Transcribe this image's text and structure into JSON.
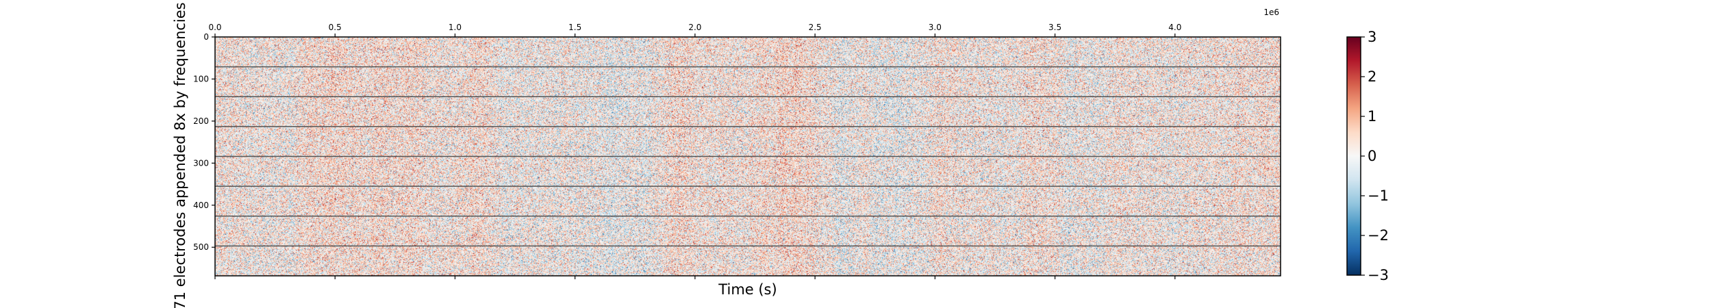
{
  "chart_data": {
    "type": "heatmap",
    "title": "",
    "xlabel": "Time (s)",
    "ylabel": "71 electrodes appended 8x by frequencies",
    "x_offset_label": "1e6",
    "xlim": [
      0,
      4.44
    ],
    "ylim": [
      568,
      0
    ],
    "x_ticks": [
      0.0,
      0.5,
      1.0,
      1.5,
      2.0,
      2.5,
      3.0,
      3.5,
      4.0
    ],
    "x_tick_labels": [
      "0.0",
      "0.5",
      "1.0",
      "1.5",
      "2.0",
      "2.5",
      "3.0",
      "3.5",
      "4.0"
    ],
    "y_ticks": [
      0,
      100,
      200,
      300,
      400,
      500
    ],
    "y_tick_labels": [
      "0",
      "100",
      "200",
      "300",
      "400",
      "500"
    ],
    "band_separators": [
      71,
      142,
      213,
      284,
      355,
      426,
      497
    ],
    "colormap": "RdBu_r",
    "vmin": -3,
    "vmax": 3,
    "colorbar_ticks": [
      3,
      2,
      1,
      0,
      -1,
      -2,
      -3
    ],
    "colorbar_tick_labels": [
      "3",
      "2",
      "1",
      "0",
      "−1",
      "−2",
      "−3"
    ],
    "colors": {
      "low": "#053061",
      "mid": "#f7f7f7",
      "high": "#67001f",
      "separator": "#555555"
    }
  }
}
